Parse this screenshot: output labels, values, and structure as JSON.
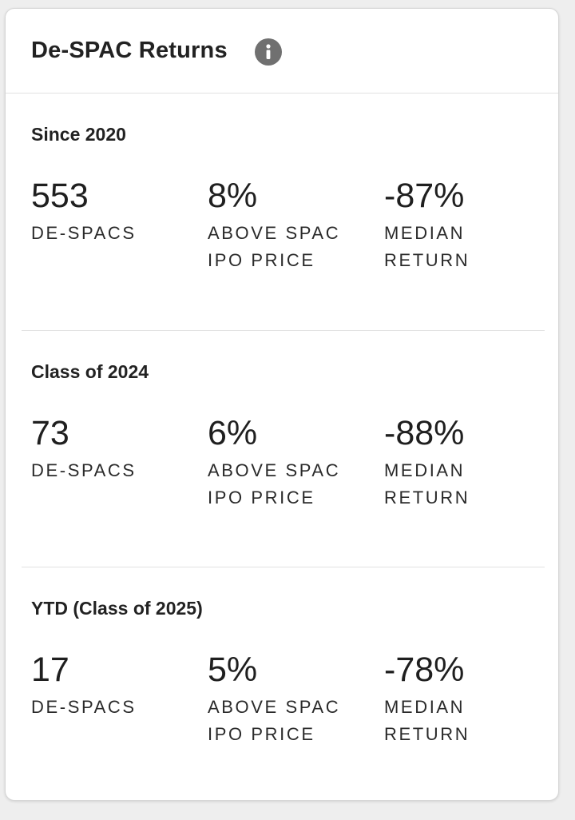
{
  "card": {
    "title": "De-SPAC Returns",
    "info_icon": "info-icon"
  },
  "sections": [
    {
      "title": "Since 2020",
      "stats": [
        {
          "value": "553",
          "label": "DE-SPACS"
        },
        {
          "value": "8%",
          "label": "ABOVE SPAC IPO PRICE"
        },
        {
          "value": "-87%",
          "label": "MEDIAN RETURN"
        }
      ]
    },
    {
      "title": "Class of 2024",
      "stats": [
        {
          "value": "73",
          "label": "DE-SPACS"
        },
        {
          "value": "6%",
          "label": "ABOVE SPAC IPO PRICE"
        },
        {
          "value": "-88%",
          "label": "MEDIAN RETURN"
        }
      ]
    },
    {
      "title": "YTD (Class of 2025)",
      "stats": [
        {
          "value": "17",
          "label": "DE-SPACS"
        },
        {
          "value": "5%",
          "label": "ABOVE SPAC IPO PRICE"
        },
        {
          "value": "-78%",
          "label": "MEDIAN RETURN"
        }
      ]
    }
  ],
  "colors": {
    "background": "#eeeeee",
    "card": "#ffffff",
    "text": "#1f1f1f",
    "icon": "#707070",
    "divider": "#e2e2e2"
  }
}
